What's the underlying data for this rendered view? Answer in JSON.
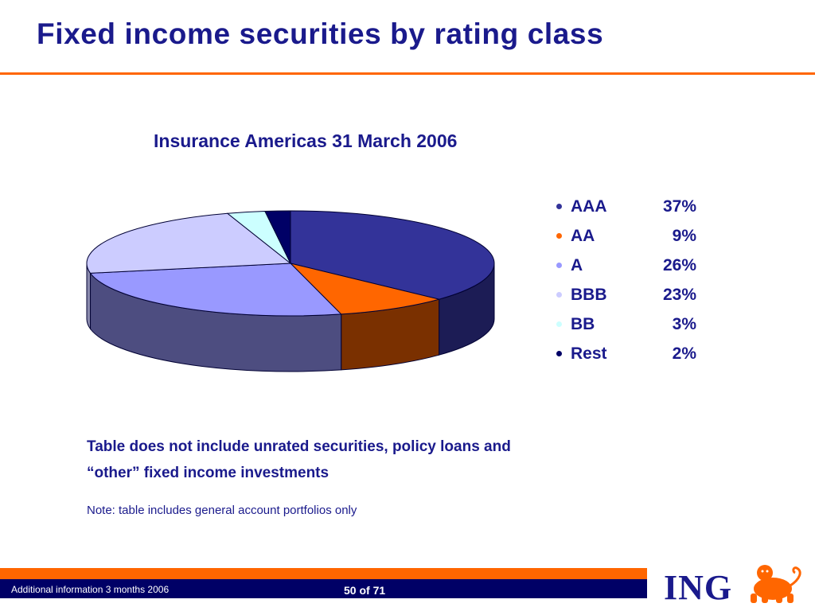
{
  "slide": {
    "title": "Fixed income securities by rating class"
  },
  "chart_data": {
    "type": "pie",
    "title": "Insurance Americas 31 March 2006",
    "categories": [
      "AAA",
      "AA",
      "A",
      "BBB",
      "BB",
      "Rest"
    ],
    "values": [
      37,
      9,
      26,
      23,
      3,
      2
    ],
    "value_labels": [
      "37%",
      "9%",
      "26%",
      "23%",
      "3%",
      "2%"
    ],
    "colors": [
      "#333399",
      "#ff6600",
      "#9999ff",
      "#ccccff",
      "#ccffff",
      "#000066"
    ],
    "side_colors": [
      "#1c1c55",
      "#7a3000",
      "#4d4d80",
      "#8a8aad",
      "#8aaaaa",
      "#00002e"
    ],
    "style": "3d",
    "legend_position": "right"
  },
  "notes": {
    "line1": "Table does not include unrated securities, policy loans and",
    "line2": "“other” fixed income investments",
    "note": "Note: table includes general account portfolios only"
  },
  "footer": {
    "left_text": "Additional information 3 months 2006",
    "page": "50 of 71",
    "logo_text": "ING",
    "brand_colors": {
      "orange": "#ff6600",
      "navy": "#000066"
    }
  }
}
